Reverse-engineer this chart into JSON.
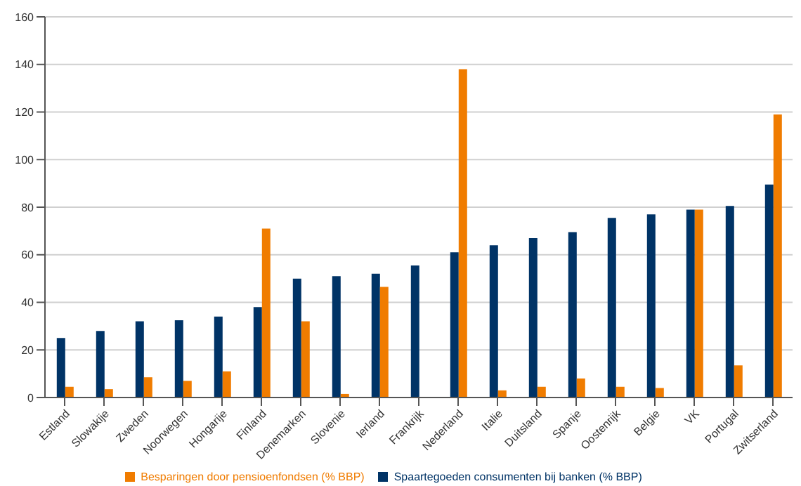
{
  "chart_data": {
    "type": "bar",
    "categories": [
      "Estland",
      "Slowakije",
      "Zweden",
      "Noorwegen",
      "Hongarije",
      "Finland",
      "Denemarken",
      "Slovenie",
      "Ierland",
      "Frankrijk",
      "Nederland",
      "Italie",
      "Duitsland",
      "Spanje",
      "Oostenrijk",
      "Belgie",
      "VK",
      "Portugal",
      "Zwitserland"
    ],
    "series": [
      {
        "name": "Spaartegoeden consumenten bij banken (% BBP)",
        "color": "#003366",
        "values": [
          25,
          28,
          32,
          32.5,
          34,
          38,
          50,
          51,
          52,
          55.5,
          61,
          64,
          67,
          69.5,
          75.5,
          77,
          79,
          80.5,
          89.5
        ]
      },
      {
        "name": "Besparingen door pensioenfondsen (% BBP)",
        "color": "#f07c00",
        "values": [
          4.5,
          3.5,
          8.5,
          7,
          11,
          71,
          32,
          1.5,
          46.5,
          null,
          138,
          3,
          4.5,
          8,
          4.5,
          4,
          79,
          13.5,
          119
        ]
      }
    ],
    "ylim": [
      0,
      160
    ],
    "yticks": [
      0,
      20,
      40,
      60,
      80,
      100,
      120,
      140,
      160
    ],
    "grid": "y",
    "legend": "bottom"
  }
}
